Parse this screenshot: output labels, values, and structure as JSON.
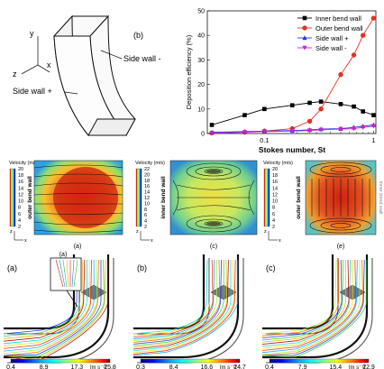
{
  "diagram": {
    "panel_label": "(b)",
    "axes": {
      "y": "y",
      "z": "z",
      "x": "x"
    },
    "labels": {
      "side_minus": "Side wall -",
      "side_plus": "Side wall +"
    }
  },
  "chart_data": {
    "type": "line",
    "panel_label": "",
    "xlabel": "Stokes number, St",
    "ylabel": "Deposition efficiency (%)",
    "xscale": "log",
    "xlim": [
      0.03,
      1.05
    ],
    "ylim": [
      0,
      50
    ],
    "yticks": [
      0,
      10,
      20,
      30,
      40,
      50
    ],
    "xticks": [
      {
        "value": 0.1,
        "label": "0.1"
      },
      {
        "value": 1,
        "label": "1"
      }
    ],
    "legend_position": "top-right",
    "series": [
      {
        "name": "Inner bend wall",
        "color": "#000000",
        "marker": "square",
        "points": [
          [
            0.033,
            3.5
          ],
          [
            0.066,
            7.5
          ],
          [
            0.1,
            10
          ],
          [
            0.18,
            11.5
          ],
          [
            0.26,
            12.5
          ],
          [
            0.33,
            13
          ],
          [
            0.5,
            12
          ],
          [
            0.66,
            11
          ],
          [
            0.8,
            9
          ],
          [
            1.0,
            7.5
          ]
        ]
      },
      {
        "name": "Outer bend wall",
        "color": "#e8321e",
        "marker": "circle",
        "points": [
          [
            0.033,
            0.2
          ],
          [
            0.066,
            0.5
          ],
          [
            0.1,
            1
          ],
          [
            0.18,
            2
          ],
          [
            0.26,
            5
          ],
          [
            0.33,
            10
          ],
          [
            0.5,
            24
          ],
          [
            0.66,
            32
          ],
          [
            0.8,
            40
          ],
          [
            1.0,
            47
          ]
        ]
      },
      {
        "name": "Side wall +",
        "color": "#2233dd",
        "marker": "triangle",
        "points": [
          [
            0.033,
            0.5
          ],
          [
            0.066,
            0.8
          ],
          [
            0.1,
            1
          ],
          [
            0.18,
            1.2
          ],
          [
            0.26,
            1.5
          ],
          [
            0.33,
            1.8
          ],
          [
            0.5,
            2
          ],
          [
            0.66,
            2.5
          ],
          [
            0.8,
            3
          ],
          [
            1.0,
            3.5
          ]
        ]
      },
      {
        "name": "Side wall -",
        "color": "#cc22cc",
        "marker": "triangle-down",
        "points": [
          [
            0.033,
            0.2
          ],
          [
            0.066,
            0.5
          ],
          [
            0.1,
            0.8
          ],
          [
            0.18,
            1
          ],
          [
            0.26,
            1.2
          ],
          [
            0.33,
            1.5
          ],
          [
            0.5,
            1.8
          ],
          [
            0.66,
            2
          ],
          [
            0.8,
            2.5
          ],
          [
            1.0,
            3
          ]
        ]
      }
    ]
  },
  "contours": [
    {
      "label": "(a)",
      "cb_title": "Velocity (m/s)",
      "ticks": [
        "20",
        "18",
        "16",
        "14",
        "12",
        "10",
        "8",
        "6",
        "4",
        "2"
      ],
      "wall": "outer bend wall"
    },
    {
      "label": "(c)",
      "cb_title": "Velocity (m/s)",
      "ticks": [
        "22",
        "20",
        "18",
        "16",
        "14",
        "12",
        "10",
        "8",
        "6",
        "4",
        "2"
      ],
      "wall": "inner bend wall"
    },
    {
      "label": "(e)",
      "cb_title": "Velocity (m/s)",
      "ticks": [
        "20",
        "18",
        "16",
        "14",
        "12",
        "10",
        "8",
        "6",
        "4",
        "2"
      ],
      "wall": "outer bend wall",
      "right_wall": "inner bend wall"
    }
  ],
  "contour_axes": {
    "z": "z",
    "x": "x"
  },
  "bends": [
    {
      "label": "(a)",
      "ticks": [
        "0.4",
        "8.9",
        "17.3",
        "25.8"
      ],
      "unit": "[m s⁻¹]"
    },
    {
      "label": "(b)",
      "ticks": [
        "0.3",
        "8.4",
        "16.6",
        "24.7"
      ],
      "unit": "[m s⁻¹]"
    },
    {
      "label": "(c)",
      "ticks": [
        "0.4",
        "7.9",
        "15.4",
        "22.9"
      ],
      "unit": "[m s⁻¹]"
    }
  ],
  "colors": {
    "jet": [
      "#00007f",
      "#0000ff",
      "#007fff",
      "#00ffff",
      "#7fff7f",
      "#ffff00",
      "#ff7f00",
      "#ff0000",
      "#7f0000"
    ]
  }
}
